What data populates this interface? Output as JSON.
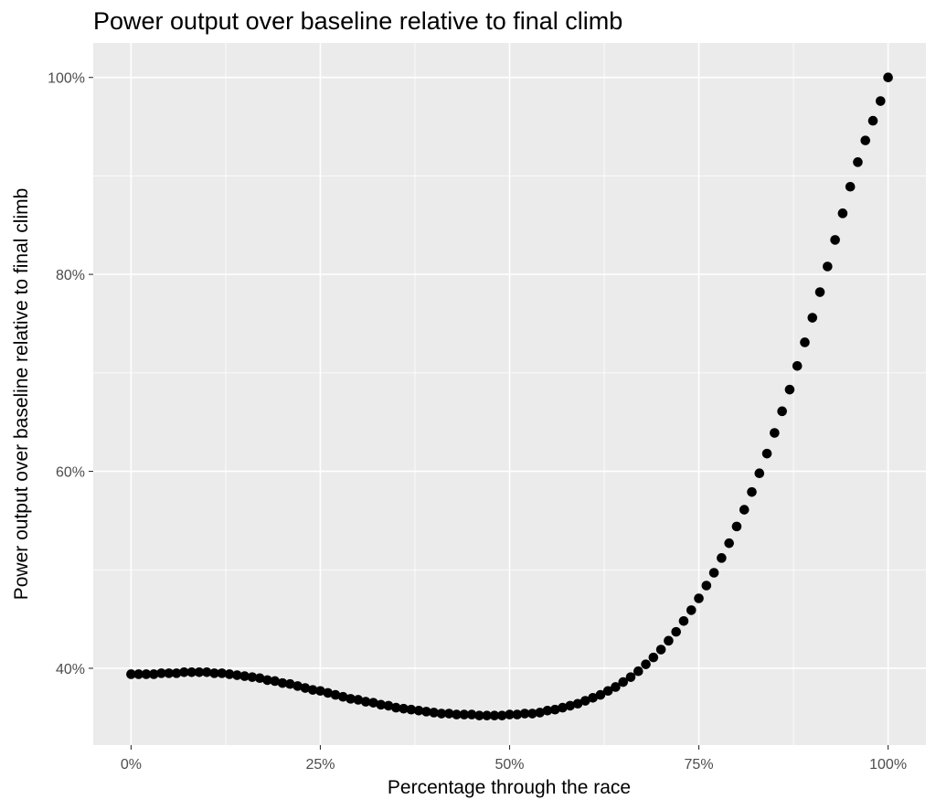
{
  "chart_data": {
    "type": "scatter",
    "title": "Power output over baseline relative to final climb",
    "xlabel": "Percentage through the race",
    "ylabel": "Power output over baseline relative to final climb",
    "xlim": [
      -0.05,
      1.05
    ],
    "ylim": [
      0.322,
      1.035
    ],
    "x_ticks": [
      0,
      0.25,
      0.5,
      0.75,
      1.0
    ],
    "x_tick_labels": [
      "0%",
      "25%",
      "50%",
      "75%",
      "100%"
    ],
    "y_ticks": [
      0.4,
      0.6,
      0.8,
      1.0
    ],
    "y_tick_labels": [
      "40%",
      "60%",
      "80%",
      "100%"
    ],
    "grid": true,
    "legend": "none",
    "point_color": "#000000",
    "series": [
      {
        "x": [
          0.0,
          0.01,
          0.02,
          0.03,
          0.04,
          0.05,
          0.06,
          0.07,
          0.08,
          0.09,
          0.1,
          0.11,
          0.12,
          0.13,
          0.14,
          0.15,
          0.16,
          0.17,
          0.18,
          0.19,
          0.2,
          0.21,
          0.22,
          0.23,
          0.24,
          0.25,
          0.26,
          0.27,
          0.28,
          0.29,
          0.3,
          0.31,
          0.32,
          0.33,
          0.34,
          0.35,
          0.36,
          0.37,
          0.38,
          0.39,
          0.4,
          0.41,
          0.42,
          0.43,
          0.44,
          0.45,
          0.46,
          0.47,
          0.48,
          0.49,
          0.5,
          0.51,
          0.52,
          0.53,
          0.54,
          0.55,
          0.56,
          0.57,
          0.58,
          0.59,
          0.6,
          0.61,
          0.62,
          0.63,
          0.64,
          0.65,
          0.66,
          0.67,
          0.68,
          0.69,
          0.7,
          0.71,
          0.72,
          0.73,
          0.74,
          0.75,
          0.76,
          0.77,
          0.78,
          0.79,
          0.8,
          0.81,
          0.82,
          0.83,
          0.84,
          0.85,
          0.86,
          0.87,
          0.88,
          0.89,
          0.9,
          0.91,
          0.92,
          0.93,
          0.94,
          0.95,
          0.96,
          0.97,
          0.98,
          0.99,
          1.0
        ],
        "y": [
          0.394,
          0.394,
          0.394,
          0.394,
          0.395,
          0.395,
          0.395,
          0.396,
          0.396,
          0.396,
          0.396,
          0.395,
          0.395,
          0.394,
          0.393,
          0.392,
          0.391,
          0.39,
          0.388,
          0.387,
          0.385,
          0.384,
          0.382,
          0.38,
          0.378,
          0.377,
          0.375,
          0.373,
          0.371,
          0.369,
          0.368,
          0.366,
          0.365,
          0.363,
          0.362,
          0.36,
          0.359,
          0.358,
          0.357,
          0.356,
          0.355,
          0.354,
          0.354,
          0.353,
          0.353,
          0.353,
          0.352,
          0.352,
          0.352,
          0.352,
          0.353,
          0.353,
          0.354,
          0.354,
          0.355,
          0.357,
          0.358,
          0.36,
          0.362,
          0.364,
          0.367,
          0.37,
          0.373,
          0.377,
          0.381,
          0.386,
          0.391,
          0.397,
          0.404,
          0.411,
          0.419,
          0.428,
          0.437,
          0.448,
          0.459,
          0.471,
          0.484,
          0.497,
          0.512,
          0.527,
          0.544,
          0.561,
          0.579,
          0.598,
          0.618,
          0.639,
          0.661,
          0.683,
          0.707,
          0.731,
          0.756,
          0.782,
          0.808,
          0.835,
          0.862,
          0.889,
          0.914,
          0.936,
          0.956,
          0.976,
          1.0
        ]
      }
    ]
  }
}
